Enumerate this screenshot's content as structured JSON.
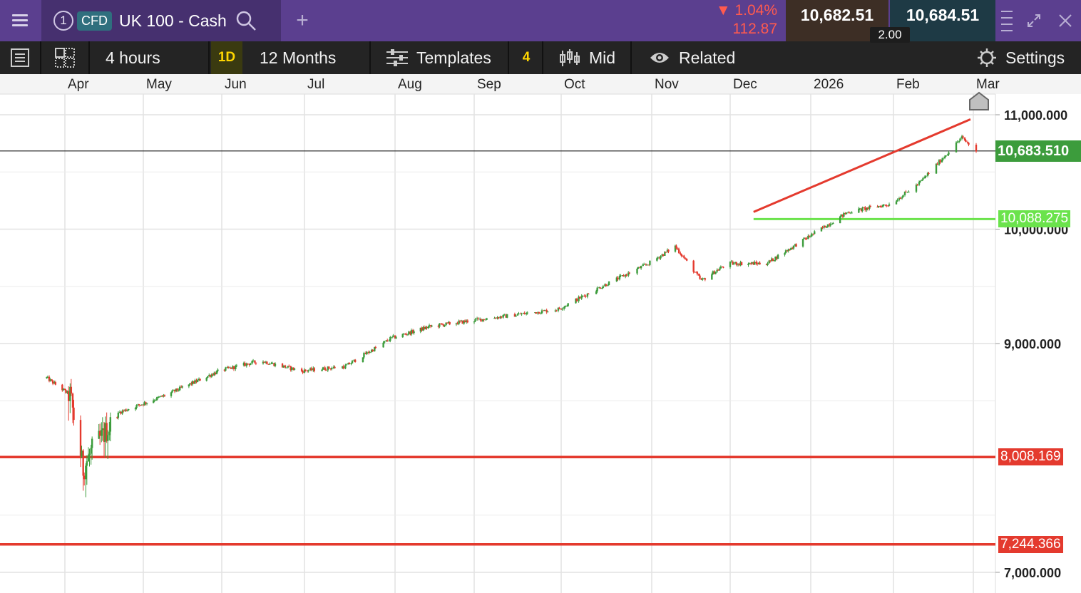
{
  "topbar": {
    "menu_icon": "hamburger-icon",
    "instrument_number": "1",
    "instrument_badge": "CFD",
    "instrument_name": "UK 100 - Cash",
    "search_icon": "search-icon",
    "add_tab_label": "+",
    "change_percent": "1.04%",
    "change_points": "112.87",
    "change_direction": "down",
    "bid_price": "10,682.51",
    "ask_price": "10,684.51",
    "spread": "2.00",
    "colors": {
      "bar": "#5b3f8f",
      "down": "#ff5a4f",
      "bid_bg": "#3d2e25",
      "ask_bg": "#1e3a45"
    }
  },
  "toolbar": {
    "interval_label": "4 hours",
    "timeframe_label": "1D",
    "range_label": "12 Months",
    "templates_label": "Templates",
    "studies_count": "4",
    "price_type_label": "Mid",
    "related_label": "Related",
    "settings_label": "Settings"
  },
  "chart_data": {
    "type": "candlestick",
    "x_labels": [
      "Apr",
      "May",
      "Jun",
      "Jul",
      "Aug",
      "Sep",
      "Oct",
      "Nov",
      "Dec",
      "2026",
      "Feb",
      "Mar"
    ],
    "y_ticks": [
      "11,000.000",
      "10,000.000",
      "9,000.000",
      "7,000.000"
    ],
    "y_range": [
      6900,
      11300
    ],
    "last_price": "10,683.510",
    "horizontal_lines": [
      {
        "label": "10,088.275",
        "value": 10088.275,
        "color": "#6be34c"
      },
      {
        "label": "8,008.169",
        "value": 8008.169,
        "color": "#e43a2e"
      },
      {
        "label": "7,244.366",
        "value": 7244.366,
        "color": "#e43a2e"
      }
    ],
    "trendline": {
      "color": "#e43a2e",
      "from": {
        "date": "2025-12-10",
        "value": 10150
      },
      "to": {
        "date": "2026-02-28",
        "value": 10960
      }
    },
    "series_anchors": [
      {
        "date": "2025-03-25",
        "value": 8700
      },
      {
        "date": "2025-03-31",
        "value": 8600
      },
      {
        "date": "2025-04-03",
        "value": 8550
      },
      {
        "date": "2025-04-08",
        "value": 7900
      },
      {
        "date": "2025-04-11",
        "value": 8050
      },
      {
        "date": "2025-04-22",
        "value": 8400
      },
      {
        "date": "2025-05-10",
        "value": 8550
      },
      {
        "date": "2025-05-31",
        "value": 8760
      },
      {
        "date": "2025-06-15",
        "value": 8850
      },
      {
        "date": "2025-06-30",
        "value": 8760
      },
      {
        "date": "2025-07-15",
        "value": 8800
      },
      {
        "date": "2025-07-31",
        "value": 9050
      },
      {
        "date": "2025-08-15",
        "value": 9150
      },
      {
        "date": "2025-08-31",
        "value": 9200
      },
      {
        "date": "2025-09-15",
        "value": 9250
      },
      {
        "date": "2025-09-30",
        "value": 9300
      },
      {
        "date": "2025-10-15",
        "value": 9500
      },
      {
        "date": "2025-10-31",
        "value": 9700
      },
      {
        "date": "2025-11-10",
        "value": 9850
      },
      {
        "date": "2025-11-20",
        "value": 9550
      },
      {
        "date": "2025-11-30",
        "value": 9700
      },
      {
        "date": "2025-12-15",
        "value": 9700
      },
      {
        "date": "2025-12-31",
        "value": 9930
      },
      {
        "date": "2026-01-15",
        "value": 10150
      },
      {
        "date": "2026-01-31",
        "value": 10220
      },
      {
        "date": "2026-02-10",
        "value": 10400
      },
      {
        "date": "2026-02-25",
        "value": 10800
      },
      {
        "date": "2026-03-02",
        "value": 10683
      }
    ],
    "colors": {
      "up": "#3c9c3c",
      "down": "#e43a2e"
    }
  }
}
